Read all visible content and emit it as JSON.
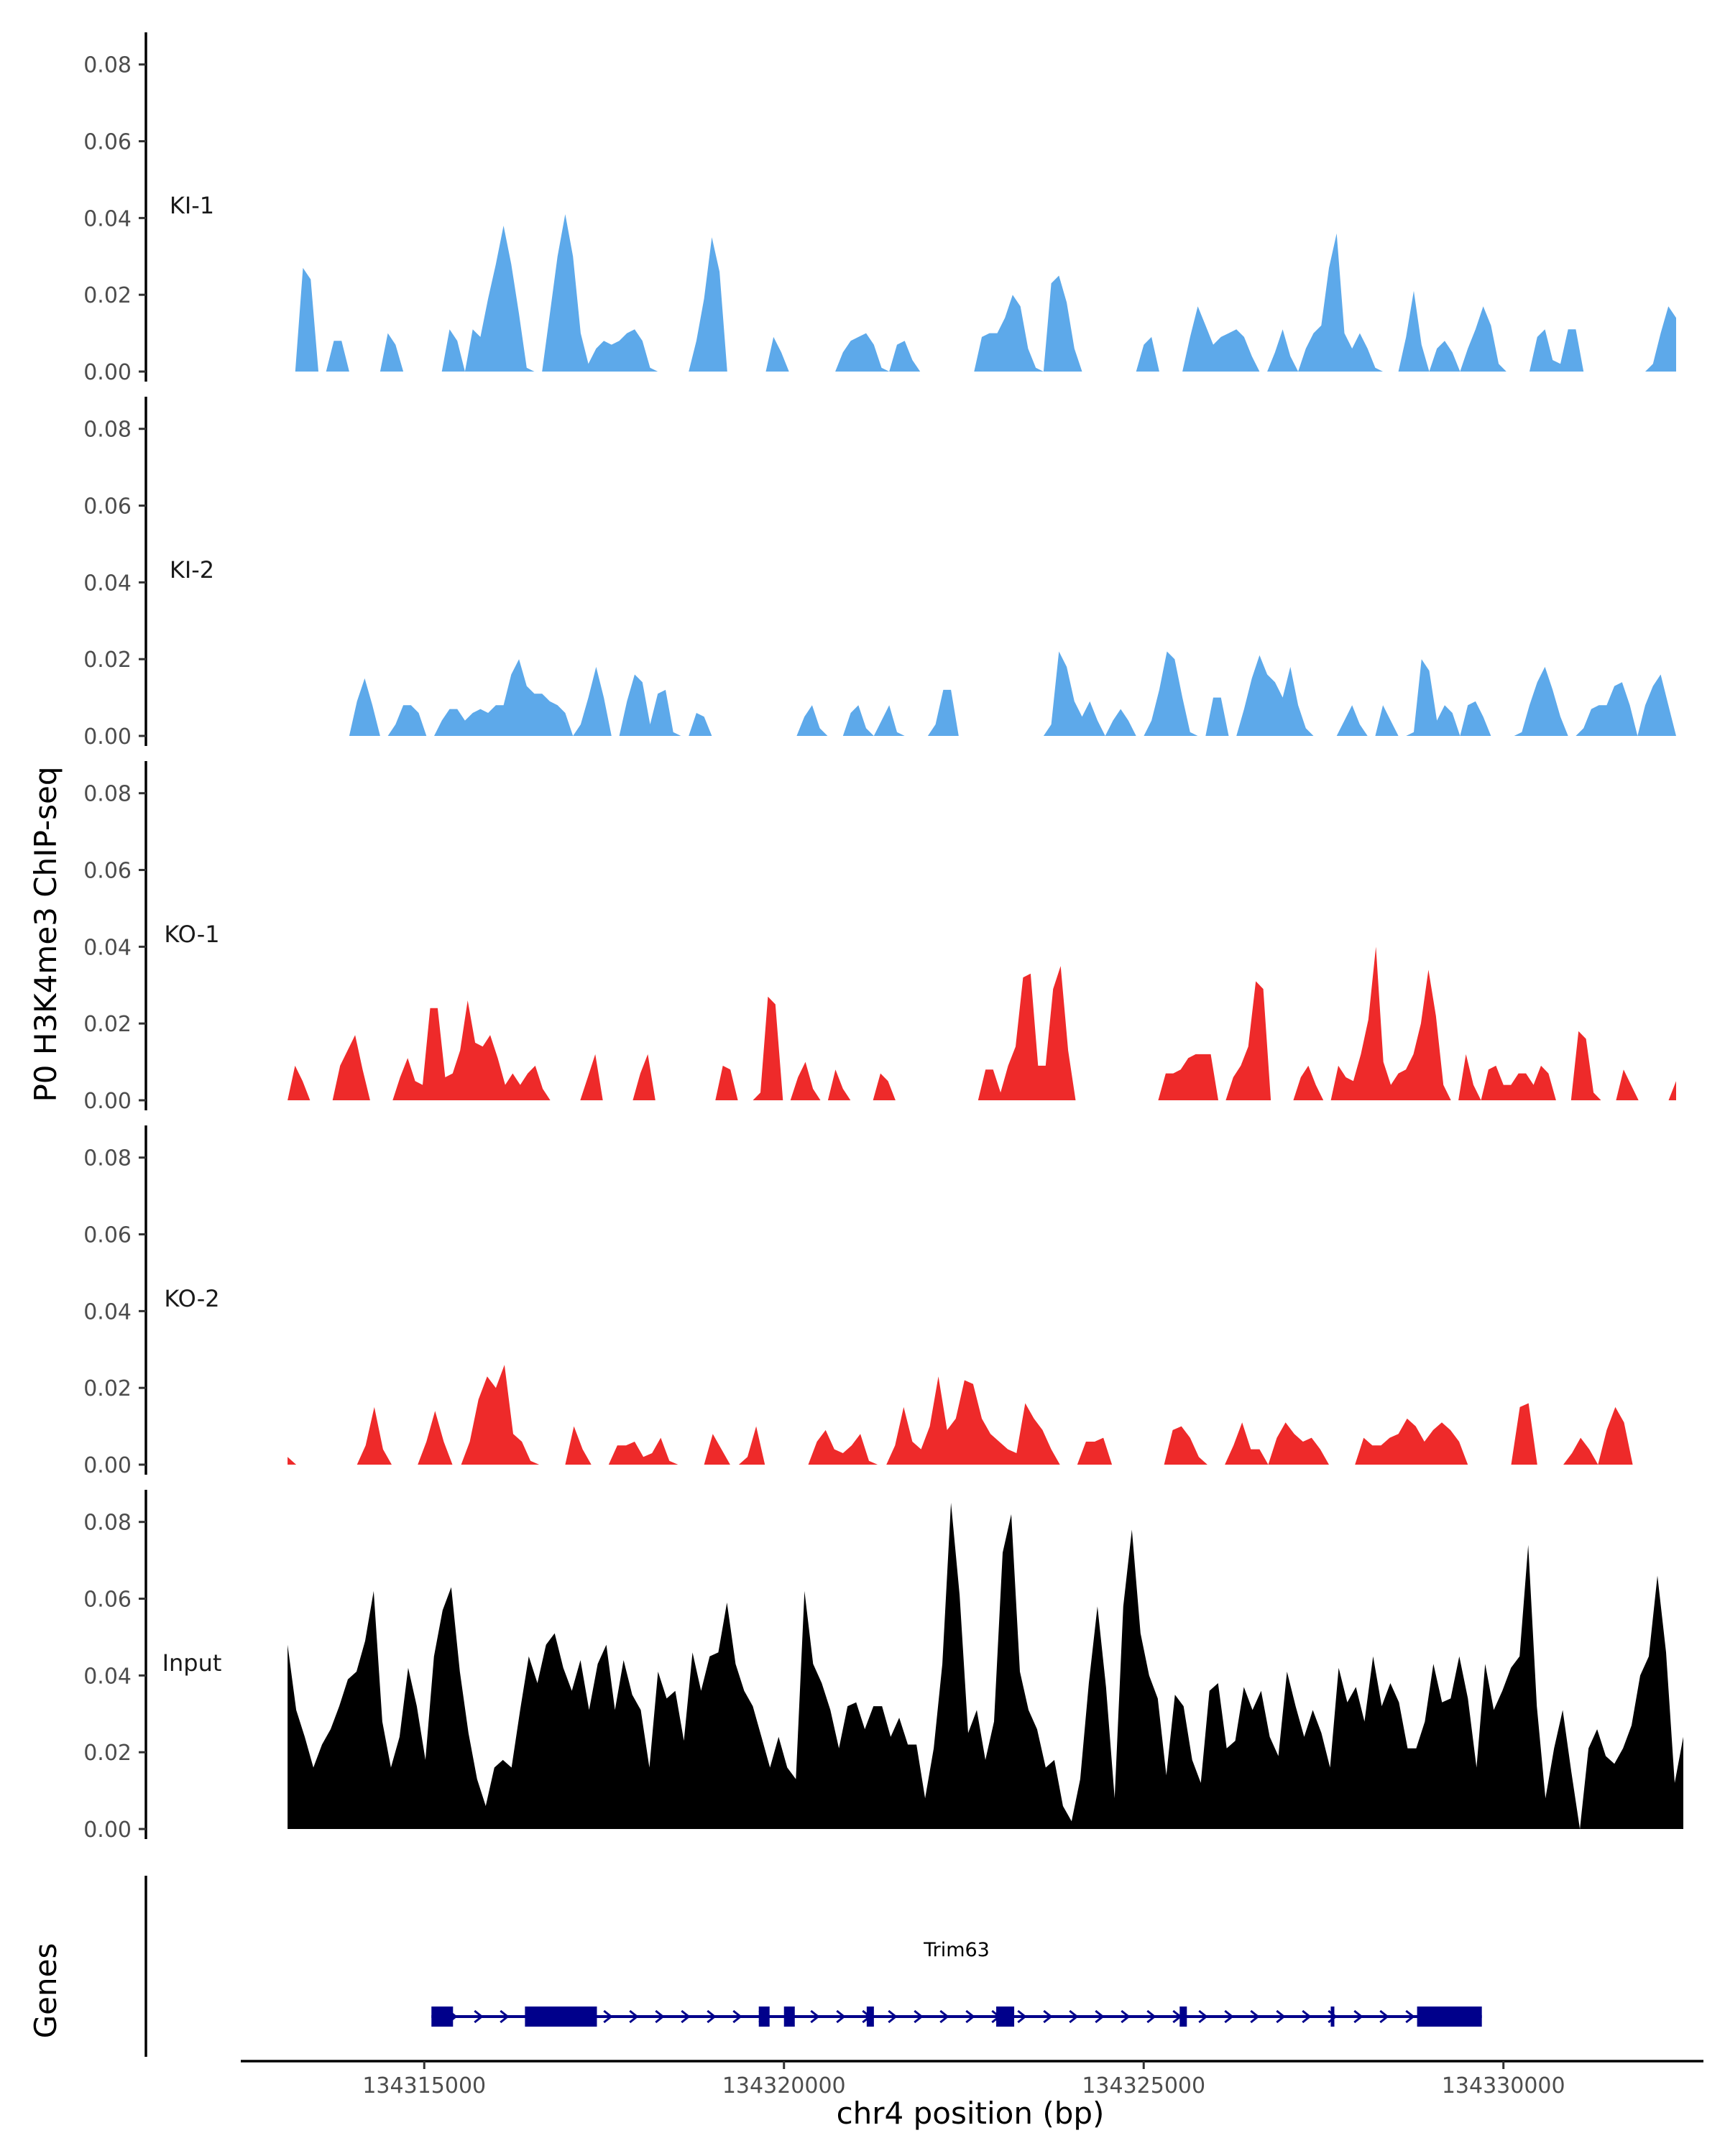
{
  "chart_data": {
    "type": "area",
    "ylabel": "P0 H3K4me3 ChIP-seq",
    "xlabel": "chr4 position (bp)",
    "genes_label": "Genes",
    "y_ticks": [
      "0.00",
      "0.02",
      "0.04",
      "0.06",
      "0.08"
    ],
    "ylim": [
      0,
      0.088
    ],
    "xlim": [
      134312400,
      134332800
    ],
    "x_ticks": [
      {
        "value": 134315000,
        "label": "134315000"
      },
      {
        "value": 134320000,
        "label": "134320000"
      },
      {
        "value": 134325000,
        "label": "134325000"
      },
      {
        "value": 134330000,
        "label": "134330000"
      }
    ],
    "colors": {
      "KI": "#5DA9EA",
      "KO": "#EE2A2A",
      "Input": "#000000",
      "gene": "#00008B"
    },
    "series": [
      {
        "name": "KI-1",
        "color": "#5DA9EA",
        "start": 134313100,
        "end": 134332400,
        "values": [
          0,
          0,
          0.027,
          0.024,
          0,
          0,
          0.008,
          0.008,
          0,
          0,
          0,
          0,
          0,
          0.01,
          0.007,
          0,
          0,
          0,
          0,
          0,
          0,
          0.011,
          0.008,
          0,
          0.011,
          0.009,
          0.019,
          0.028,
          0.038,
          0.028,
          0.015,
          0.001,
          0,
          0,
          0.015,
          0.03,
          0.041,
          0.03,
          0.01,
          0.002,
          0.006,
          0.008,
          0.007,
          0.008,
          0.01,
          0.011,
          0.008,
          0.001,
          0,
          0,
          0,
          0,
          0,
          0.008,
          0.019,
          0.035,
          0.026,
          0,
          0,
          0,
          0,
          0,
          0,
          0.009,
          0.005,
          0,
          0,
          0,
          0,
          0,
          0,
          0,
          0.005,
          0.008,
          0.009,
          0.01,
          0.007,
          0.001,
          0,
          0.007,
          0.008,
          0.003,
          0,
          0,
          0,
          0,
          0,
          0,
          0,
          0,
          0.009,
          0.01,
          0.01,
          0.014,
          0.02,
          0.017,
          0.006,
          0.001,
          0,
          0.023,
          0.025,
          0.018,
          0.006,
          0,
          0,
          0,
          0,
          0,
          0,
          0,
          0,
          0.007,
          0.009,
          0,
          0,
          0,
          0,
          0.009,
          0.017,
          0.012,
          0.007,
          0.009,
          0.01,
          0.011,
          0.009,
          0.004,
          0,
          0,
          0.005,
          0.011,
          0.004,
          0,
          0.006,
          0.01,
          0.012,
          0.027,
          0.036,
          0.01,
          0.006,
          0.01,
          0.006,
          0.001,
          0,
          0,
          0,
          0.009,
          0.021,
          0.007,
          0,
          0.006,
          0.008,
          0.005,
          0,
          0.006,
          0.011,
          0.017,
          0.012,
          0.002,
          0,
          0,
          0,
          0,
          0.009,
          0.011,
          0.003,
          0.002,
          0.011,
          0.011,
          0,
          0,
          0,
          0,
          0,
          0,
          0,
          0,
          0,
          0.002,
          0.01,
          0.017,
          0.014
        ]
      },
      {
        "name": "KI-2",
        "color": "#5DA9EA",
        "start": 134313100,
        "end": 134332400,
        "values": [
          0,
          0,
          0,
          0,
          0,
          0,
          0,
          0,
          0,
          0.009,
          0.015,
          0.008,
          0,
          0,
          0.003,
          0.008,
          0.008,
          0.006,
          0,
          0,
          0.004,
          0.007,
          0.007,
          0.004,
          0.006,
          0.007,
          0.006,
          0.008,
          0.008,
          0.016,
          0.02,
          0.013,
          0.011,
          0.011,
          0.009,
          0.008,
          0.006,
          0,
          0.003,
          0.01,
          0.018,
          0.01,
          0,
          0,
          0.009,
          0.016,
          0.014,
          0.003,
          0.011,
          0.012,
          0.001,
          0,
          0,
          0.006,
          0.005,
          0,
          0,
          0,
          0,
          0,
          0,
          0,
          0,
          0,
          0,
          0,
          0,
          0.005,
          0.008,
          0.002,
          0,
          0,
          0,
          0.006,
          0.008,
          0.002,
          0,
          0.004,
          0.008,
          0.001,
          0,
          0,
          0,
          0,
          0.003,
          0.012,
          0.012,
          0,
          0,
          0,
          0,
          0,
          0,
          0,
          0,
          0,
          0,
          0,
          0,
          0.003,
          0.022,
          0.018,
          0.009,
          0.005,
          0.009,
          0.004,
          0,
          0.004,
          0.007,
          0.004,
          0,
          0,
          0.004,
          0.012,
          0.022,
          0.02,
          0.01,
          0.001,
          0,
          0,
          0.01,
          0.01,
          0,
          0,
          0.007,
          0.015,
          0.021,
          0.016,
          0.014,
          0.01,
          0.018,
          0.008,
          0.002,
          0,
          0,
          0,
          0,
          0.004,
          0.008,
          0.003,
          0,
          0,
          0.008,
          0.004,
          0,
          0,
          0.001,
          0.02,
          0.017,
          0.004,
          0.008,
          0.006,
          0,
          0.008,
          0.009,
          0.005,
          0,
          0,
          0,
          0,
          0.001,
          0.008,
          0.014,
          0.018,
          0.012,
          0.005,
          0,
          0,
          0.002,
          0.007,
          0.008,
          0.008,
          0.013,
          0.014,
          0.008,
          0,
          0.008,
          0.013,
          0.016,
          0.008,
          0
        ]
      },
      {
        "name": "KO-1",
        "color": "#EE2A2A",
        "start": 134313100,
        "end": 134332400,
        "values": [
          0,
          0.009,
          0.005,
          0,
          0,
          0,
          0,
          0.009,
          0.013,
          0.017,
          0.008,
          0,
          0,
          0,
          0,
          0.006,
          0.011,
          0.005,
          0.004,
          0.024,
          0.024,
          0.006,
          0.007,
          0.013,
          0.026,
          0.015,
          0.014,
          0.017,
          0.011,
          0.004,
          0.007,
          0.004,
          0.007,
          0.009,
          0.003,
          0,
          0,
          0,
          0,
          0,
          0.006,
          0.012,
          0,
          0,
          0,
          0,
          0,
          0.007,
          0.012,
          0,
          0,
          0,
          0,
          0,
          0,
          0,
          0,
          0,
          0.009,
          0.008,
          0,
          0,
          0,
          0.002,
          0.027,
          0.025,
          0,
          0,
          0.006,
          0.01,
          0.003,
          0,
          0,
          0.008,
          0.003,
          0,
          0,
          0,
          0,
          0.007,
          0.005,
          0,
          0,
          0,
          0,
          0,
          0,
          0,
          0,
          0,
          0,
          0,
          0,
          0.008,
          0.008,
          0.002,
          0.009,
          0.014,
          0.032,
          0.033,
          0.009,
          0.009,
          0.029,
          0.035,
          0.013,
          0,
          0,
          0,
          0,
          0,
          0,
          0,
          0,
          0,
          0,
          0,
          0,
          0.007,
          0.007,
          0.008,
          0.011,
          0.012,
          0.012,
          0.012,
          0,
          0,
          0.006,
          0.009,
          0.014,
          0.031,
          0.029,
          0,
          0,
          0,
          0,
          0.006,
          0.009,
          0.004,
          0,
          0,
          0.009,
          0.006,
          0.005,
          0.012,
          0.021,
          0.04,
          0.01,
          0.004,
          0.007,
          0.008,
          0.012,
          0.02,
          0.034,
          0.022,
          0.004,
          0,
          0,
          0.012,
          0.004,
          0,
          0.008,
          0.009,
          0.004,
          0.004,
          0.007,
          0.007,
          0.004,
          0.009,
          0.007,
          0,
          0,
          0,
          0.018,
          0.016,
          0.002,
          0,
          0,
          0,
          0.008,
          0.004,
          0,
          0,
          0,
          0,
          0,
          0.005
        ]
      },
      {
        "name": "KO-2",
        "color": "#EE2A2A",
        "start": 134313100,
        "end": 134332400,
        "values": [
          0.002,
          0,
          0,
          0,
          0,
          0,
          0,
          0,
          0,
          0.005,
          0.015,
          0.004,
          0,
          0,
          0,
          0,
          0.006,
          0.014,
          0.006,
          0,
          0,
          0.006,
          0.017,
          0.023,
          0.02,
          0.026,
          0.008,
          0.006,
          0.001,
          0,
          0,
          0,
          0,
          0.01,
          0.004,
          0,
          0,
          0,
          0.005,
          0.005,
          0.006,
          0.002,
          0.003,
          0.007,
          0.001,
          0,
          0,
          0,
          0,
          0.008,
          0.004,
          0,
          0,
          0.002,
          0.01,
          0,
          0,
          0,
          0,
          0,
          0,
          0.006,
          0.009,
          0.004,
          0.003,
          0.005,
          0.008,
          0.001,
          0,
          0,
          0.005,
          0.015,
          0.006,
          0.004,
          0.01,
          0.023,
          0.009,
          0.012,
          0.022,
          0.021,
          0.012,
          0.008,
          0.006,
          0.004,
          0.003,
          0.016,
          0.012,
          0.009,
          0.004,
          0,
          0,
          0,
          0.006,
          0.006,
          0.007,
          0,
          0,
          0,
          0,
          0,
          0,
          0,
          0.009,
          0.01,
          0.007,
          0.002,
          0,
          0,
          0,
          0.005,
          0.011,
          0.004,
          0.004,
          0,
          0.007,
          0.011,
          0.008,
          0.006,
          0.007,
          0.004,
          0,
          0,
          0,
          0,
          0.007,
          0.005,
          0.005,
          0.007,
          0.008,
          0.012,
          0.01,
          0.006,
          0.009,
          0.011,
          0.009,
          0.006,
          0,
          0,
          0,
          0,
          0,
          0,
          0.015,
          0.016,
          0,
          0,
          0,
          0,
          0.003,
          0.007,
          0.004,
          0,
          0.009,
          0.015,
          0.011,
          0,
          0,
          0,
          0,
          0,
          0
        ]
      },
      {
        "name": "Input",
        "color": "#000000",
        "start": 134313100,
        "end": 134332500,
        "values": [
          0.048,
          0.031,
          0.024,
          0.016,
          0.022,
          0.026,
          0.032,
          0.039,
          0.041,
          0.049,
          0.062,
          0.028,
          0.016,
          0.024,
          0.042,
          0.032,
          0.018,
          0.045,
          0.057,
          0.063,
          0.041,
          0.025,
          0.013,
          0.006,
          0.016,
          0.018,
          0.016,
          0.031,
          0.045,
          0.038,
          0.048,
          0.051,
          0.042,
          0.036,
          0.044,
          0.031,
          0.043,
          0.048,
          0.031,
          0.044,
          0.035,
          0.031,
          0.016,
          0.041,
          0.034,
          0.036,
          0.023,
          0.046,
          0.036,
          0.045,
          0.046,
          0.059,
          0.043,
          0.036,
          0.032,
          0.024,
          0.016,
          0.024,
          0.016,
          0.013,
          0.062,
          0.043,
          0.038,
          0.031,
          0.021,
          0.032,
          0.033,
          0.026,
          0.032,
          0.032,
          0.024,
          0.029,
          0.022,
          0.022,
          0.008,
          0.021,
          0.043,
          0.085,
          0.061,
          0.025,
          0.031,
          0.018,
          0.028,
          0.072,
          0.082,
          0.041,
          0.031,
          0.026,
          0.016,
          0.018,
          0.006,
          0.002,
          0.013,
          0.038,
          0.058,
          0.037,
          0.008,
          0.058,
          0.078,
          0.051,
          0.04,
          0.034,
          0.014,
          0.035,
          0.032,
          0.018,
          0.012,
          0.036,
          0.038,
          0.021,
          0.023,
          0.037,
          0.031,
          0.036,
          0.024,
          0.019,
          0.041,
          0.032,
          0.024,
          0.031,
          0.025,
          0.016,
          0.042,
          0.033,
          0.037,
          0.028,
          0.045,
          0.032,
          0.038,
          0.033,
          0.021,
          0.021,
          0.028,
          0.043,
          0.033,
          0.034,
          0.045,
          0.034,
          0.016,
          0.043,
          0.031,
          0.036,
          0.042,
          0.045,
          0.074,
          0.032,
          0.008,
          0.021,
          0.031,
          0.015,
          0.0,
          0.021,
          0.026,
          0.019,
          0.017,
          0.021,
          0.027,
          0.04,
          0.045,
          0.066,
          0.046,
          0.012,
          0.024
        ]
      }
    ],
    "genes": [
      {
        "name": "Trim63",
        "start": 134315100,
        "end": 134329700,
        "strand": "+",
        "exons": [
          [
            134315100,
            134315400
          ],
          [
            134316400,
            134317400
          ],
          [
            134319650,
            134319800
          ],
          [
            134320000,
            134320150
          ],
          [
            134321150,
            134321250
          ],
          [
            134322950,
            134323200
          ],
          [
            134325500,
            134325600
          ],
          [
            134327600,
            134327650
          ],
          [
            134328800,
            134329700
          ]
        ]
      }
    ]
  }
}
